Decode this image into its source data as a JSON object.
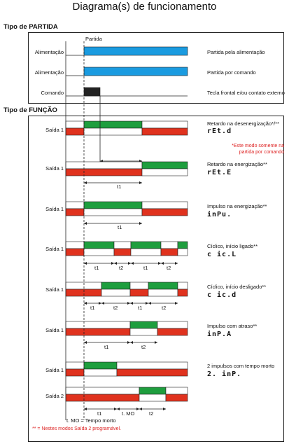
{
  "title": "Diagrama(s) de funcionamento",
  "colors": {
    "blue": "#1a9be0",
    "green": "#1e9e3e",
    "red": "#e0321e",
    "black": "#222222",
    "note": "#dd2222"
  },
  "partida": {
    "heading": "Tipo de PARTIDA",
    "marker": "Partida",
    "rows": [
      {
        "label": "Alimentação",
        "desc": "Partida pela alimentação"
      },
      {
        "label": "Alimentação",
        "desc": "Partida por comando"
      },
      {
        "label": "Comando",
        "desc": "Tecla frontal e/ou contato externo"
      }
    ]
  },
  "funcao": {
    "heading": "Tipo de FUNÇÃO",
    "modes": [
      {
        "label": "Saída 1",
        "desc": "Retardo na desenergização*/**",
        "code": "rEt.d",
        "note": "*Este modo somente na partida por comando",
        "times": [
          "t1"
        ]
      },
      {
        "label": "Saída 1",
        "desc": "Retardo na energização**",
        "code": "rEt.E",
        "times": [
          "t1"
        ]
      },
      {
        "label": "Saída 1",
        "desc": "Impulso na energização**",
        "code": "inPu.",
        "times": [
          "t1"
        ]
      },
      {
        "label": "Saída 1",
        "desc": "Cíclico, início ligado**",
        "code": "c ic.L",
        "times": [
          "t1",
          "t2",
          "t1",
          "t2"
        ]
      },
      {
        "label": "Saída 1",
        "desc": "Cíclico, início desligado**",
        "code": "c ic.d",
        "times": [
          "t1",
          "t2",
          "t1",
          "t2"
        ]
      },
      {
        "label": "Saída 1",
        "desc": "Impulso com atraso**",
        "code": "inP.A",
        "times": [
          "t1",
          "t2"
        ]
      },
      {
        "label": "Saída 1",
        "label2": "Saída 2",
        "desc": "2 impulsos com tempo morto",
        "code": "2. inP.",
        "times": [
          "t1",
          "t. MO",
          "t2"
        ]
      }
    ],
    "tmo_legend": "t. MO = Tempo morto",
    "footnote": "** = Nestes modos Saída 2 programável."
  }
}
